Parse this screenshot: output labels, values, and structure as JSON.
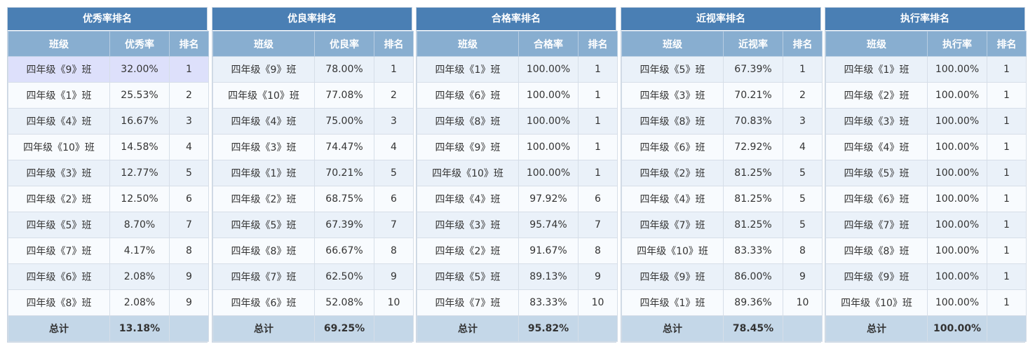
{
  "headers": {
    "class": "班级",
    "rank": "排名",
    "total": "总计"
  },
  "panels": [
    {
      "title": "优秀率排名",
      "rate_label": "优秀率",
      "rows": [
        {
          "class": "四年级《9》班",
          "rate": "32.00%",
          "rank": "1"
        },
        {
          "class": "四年级《1》班",
          "rate": "25.53%",
          "rank": "2"
        },
        {
          "class": "四年级《4》班",
          "rate": "16.67%",
          "rank": "3"
        },
        {
          "class": "四年级《10》班",
          "rate": "14.58%",
          "rank": "4"
        },
        {
          "class": "四年级《3》班",
          "rate": "12.77%",
          "rank": "5"
        },
        {
          "class": "四年级《2》班",
          "rate": "12.50%",
          "rank": "6"
        },
        {
          "class": "四年级《5》班",
          "rate": "8.70%",
          "rank": "7"
        },
        {
          "class": "四年级《7》班",
          "rate": "4.17%",
          "rank": "8"
        },
        {
          "class": "四年级《6》班",
          "rate": "2.08%",
          "rank": "9"
        },
        {
          "class": "四年级《8》班",
          "rate": "2.08%",
          "rank": "9"
        }
      ],
      "total": "13.18%"
    },
    {
      "title": "优良率排名",
      "rate_label": "优良率",
      "rows": [
        {
          "class": "四年级《9》班",
          "rate": "78.00%",
          "rank": "1"
        },
        {
          "class": "四年级《10》班",
          "rate": "77.08%",
          "rank": "2"
        },
        {
          "class": "四年级《4》班",
          "rate": "75.00%",
          "rank": "3"
        },
        {
          "class": "四年级《3》班",
          "rate": "74.47%",
          "rank": "4"
        },
        {
          "class": "四年级《1》班",
          "rate": "70.21%",
          "rank": "5"
        },
        {
          "class": "四年级《2》班",
          "rate": "68.75%",
          "rank": "6"
        },
        {
          "class": "四年级《5》班",
          "rate": "67.39%",
          "rank": "7"
        },
        {
          "class": "四年级《8》班",
          "rate": "66.67%",
          "rank": "8"
        },
        {
          "class": "四年级《7》班",
          "rate": "62.50%",
          "rank": "9"
        },
        {
          "class": "四年级《6》班",
          "rate": "52.08%",
          "rank": "10"
        }
      ],
      "total": "69.25%"
    },
    {
      "title": "合格率排名",
      "rate_label": "合格率",
      "rows": [
        {
          "class": "四年级《1》班",
          "rate": "100.00%",
          "rank": "1"
        },
        {
          "class": "四年级《6》班",
          "rate": "100.00%",
          "rank": "1"
        },
        {
          "class": "四年级《8》班",
          "rate": "100.00%",
          "rank": "1"
        },
        {
          "class": "四年级《9》班",
          "rate": "100.00%",
          "rank": "1"
        },
        {
          "class": "四年级《10》班",
          "rate": "100.00%",
          "rank": "1"
        },
        {
          "class": "四年级《4》班",
          "rate": "97.92%",
          "rank": "6"
        },
        {
          "class": "四年级《3》班",
          "rate": "95.74%",
          "rank": "7"
        },
        {
          "class": "四年级《2》班",
          "rate": "91.67%",
          "rank": "8"
        },
        {
          "class": "四年级《5》班",
          "rate": "89.13%",
          "rank": "9"
        },
        {
          "class": "四年级《7》班",
          "rate": "83.33%",
          "rank": "10"
        }
      ],
      "total": "95.82%"
    },
    {
      "title": "近视率排名",
      "rate_label": "近视率",
      "rows": [
        {
          "class": "四年级《5》班",
          "rate": "67.39%",
          "rank": "1"
        },
        {
          "class": "四年级《3》班",
          "rate": "70.21%",
          "rank": "2"
        },
        {
          "class": "四年级《8》班",
          "rate": "70.83%",
          "rank": "3"
        },
        {
          "class": "四年级《6》班",
          "rate": "72.92%",
          "rank": "4"
        },
        {
          "class": "四年级《2》班",
          "rate": "81.25%",
          "rank": "5"
        },
        {
          "class": "四年级《4》班",
          "rate": "81.25%",
          "rank": "5"
        },
        {
          "class": "四年级《7》班",
          "rate": "81.25%",
          "rank": "5"
        },
        {
          "class": "四年级《10》班",
          "rate": "83.33%",
          "rank": "8"
        },
        {
          "class": "四年级《9》班",
          "rate": "86.00%",
          "rank": "9"
        },
        {
          "class": "四年级《1》班",
          "rate": "89.36%",
          "rank": "10"
        }
      ],
      "total": "78.45%"
    },
    {
      "title": "执行率排名",
      "rate_label": "执行率",
      "rows": [
        {
          "class": "四年级《1》班",
          "rate": "100.00%",
          "rank": "1"
        },
        {
          "class": "四年级《2》班",
          "rate": "100.00%",
          "rank": "1"
        },
        {
          "class": "四年级《3》班",
          "rate": "100.00%",
          "rank": "1"
        },
        {
          "class": "四年级《4》班",
          "rate": "100.00%",
          "rank": "1"
        },
        {
          "class": "四年级《5》班",
          "rate": "100.00%",
          "rank": "1"
        },
        {
          "class": "四年级《6》班",
          "rate": "100.00%",
          "rank": "1"
        },
        {
          "class": "四年级《7》班",
          "rate": "100.00%",
          "rank": "1"
        },
        {
          "class": "四年级《8》班",
          "rate": "100.00%",
          "rank": "1"
        },
        {
          "class": "四年级《9》班",
          "rate": "100.00%",
          "rank": "1"
        },
        {
          "class": "四年级《10》班",
          "rate": "100.00%",
          "rank": "1"
        }
      ],
      "total": "100.00%"
    }
  ]
}
